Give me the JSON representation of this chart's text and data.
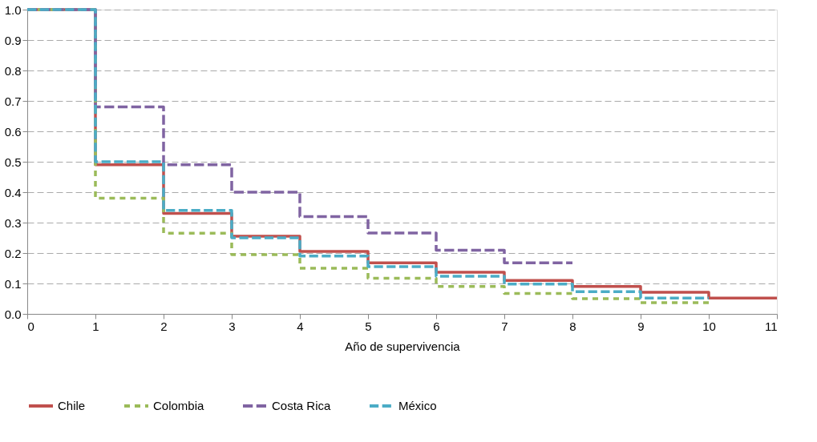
{
  "chart_data": {
    "type": "step",
    "xlabel": "Año de supervivencia",
    "xlim": [
      0,
      11
    ],
    "xticks": [
      0,
      1,
      2,
      3,
      4,
      5,
      6,
      7,
      8,
      9,
      10,
      11
    ],
    "ylim": [
      0,
      1
    ],
    "yticks": [
      {
        "value": 0,
        "label": "0.0"
      },
      0.1,
      0.2,
      0.3,
      0.4,
      0.5,
      0.6,
      0.7,
      0.8,
      0.9,
      {
        "value": 1,
        "label": "1.0"
      }
    ],
    "grid": "y",
    "legend": "bottom",
    "marker": "none",
    "series": [
      {
        "name": "Chile",
        "color": "#c0504d",
        "line_style": "solid",
        "x": [
          0,
          1,
          2,
          3,
          4,
          5,
          6,
          7,
          8,
          9,
          10,
          11
        ],
        "values": [
          1.0,
          0.49,
          0.33,
          0.255,
          0.205,
          0.168,
          0.137,
          0.11,
          0.09,
          0.071,
          0.052,
          0.052
        ]
      },
      {
        "name": "Colombia",
        "color": "#9bbb59",
        "line_style": "dashed",
        "x": [
          0,
          1,
          2,
          3,
          4,
          5,
          6,
          7,
          8,
          9,
          10
        ],
        "values": [
          1.0,
          0.38,
          0.265,
          0.195,
          0.15,
          0.117,
          0.09,
          0.067,
          0.05,
          0.037,
          0.037
        ]
      },
      {
        "name": "Costa Rica",
        "color": "#8064a2",
        "line_style": "dashed",
        "x": [
          0,
          1,
          2,
          3,
          4,
          5,
          6,
          7,
          8
        ],
        "values": [
          1.0,
          0.68,
          0.49,
          0.4,
          0.32,
          0.266,
          0.209,
          0.168,
          0.168
        ]
      },
      {
        "name": "México",
        "color": "#4bacc6",
        "line_style": "dashed",
        "x": [
          0,
          1,
          2,
          3,
          4,
          5,
          6,
          7,
          8,
          9,
          10
        ],
        "values": [
          1.0,
          0.5,
          0.34,
          0.25,
          0.19,
          0.155,
          0.124,
          0.098,
          0.073,
          0.052,
          0.052
        ]
      }
    ]
  }
}
